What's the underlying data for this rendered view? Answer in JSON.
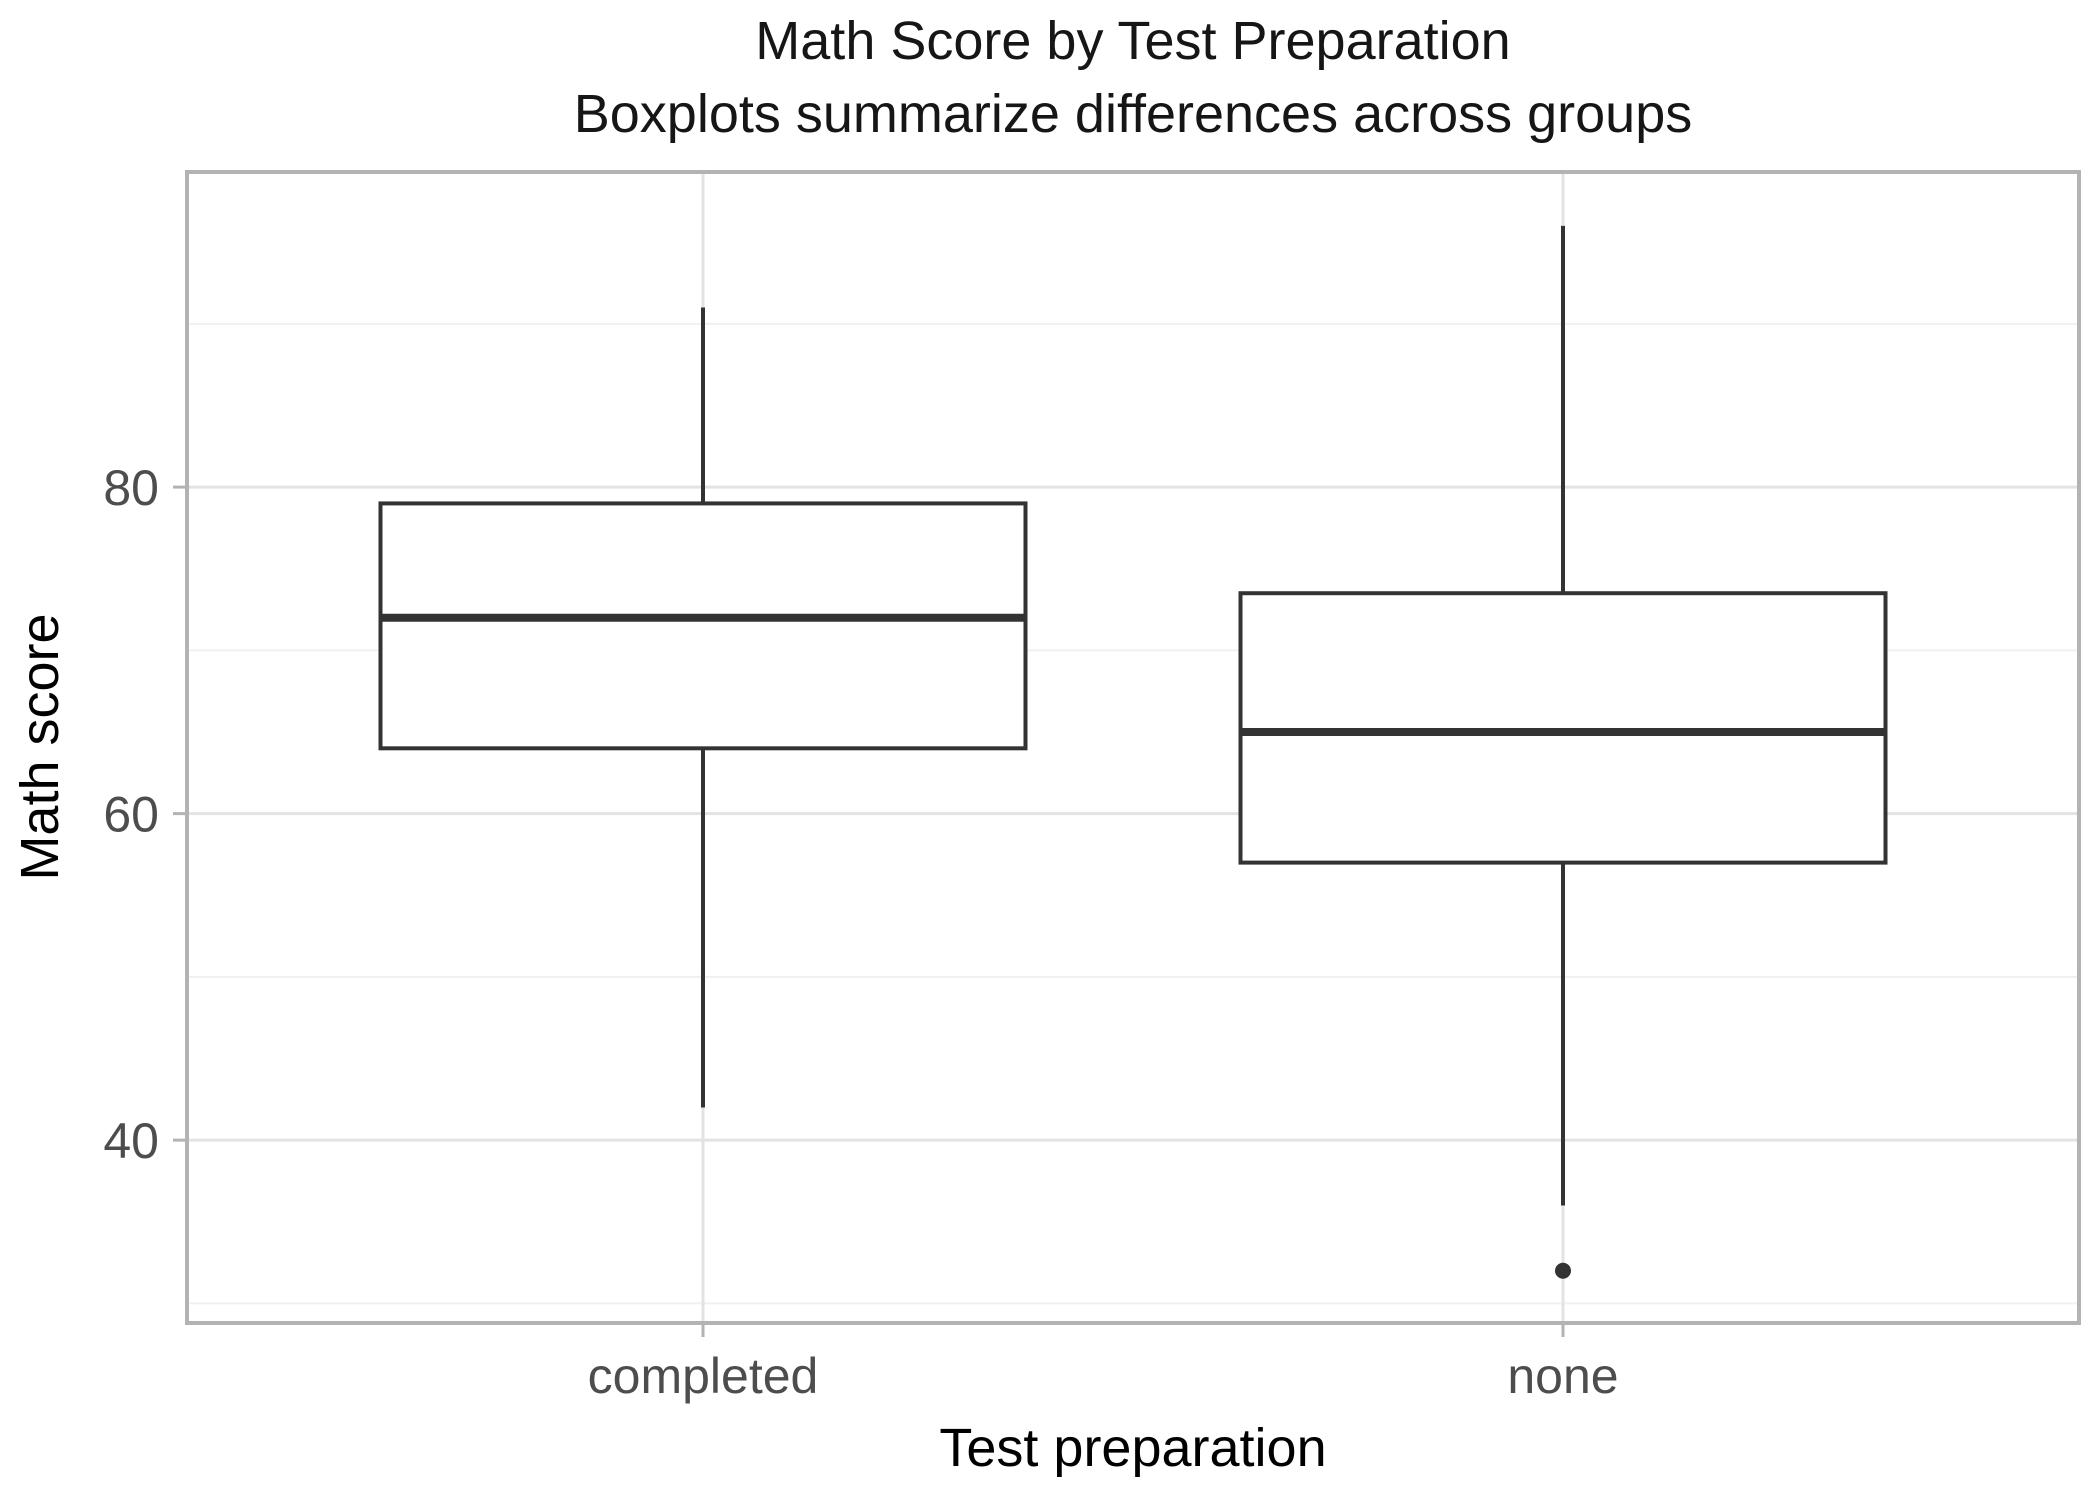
{
  "title": "Math Score by Test Preparation",
  "subtitle": "Boxplots summarize differences across groups",
  "chart_data": {
    "type": "boxplot",
    "title": "Math Score by Test Preparation",
    "subtitle": "Boxplots summarize differences across groups",
    "xlabel": "Test preparation",
    "ylabel": "Math score",
    "categories": [
      "completed",
      "none"
    ],
    "series": [
      {
        "category": "completed",
        "whisker_low": 42,
        "q1": 64,
        "median": 72,
        "q3": 79,
        "whisker_high": 91,
        "outliers": []
      },
      {
        "category": "none",
        "whisker_low": 36,
        "q1": 57,
        "median": 65,
        "q3": 73.5,
        "whisker_high": 96,
        "outliers": [
          32
        ]
      }
    ],
    "y_ticks": [
      40,
      60,
      80
    ],
    "y_minor_gridlines": [
      30,
      50,
      70,
      90
    ],
    "ylim": [
      28.8,
      99.3
    ],
    "box_width_ratio": 0.75,
    "grid": true,
    "legend_position": "none",
    "colors": {
      "box_stroke": "#333333",
      "box_fill": "#ffffff",
      "outlier": "#333333",
      "grid_major": "#e3e3e3",
      "grid_minor": "#f0f0f0",
      "panel_border": "#b3b3b3",
      "tick_mark": "#b3b3b3",
      "tick_label": "#4d4d4d",
      "title_text": "#161616",
      "panel_background": "#ffffff"
    }
  }
}
